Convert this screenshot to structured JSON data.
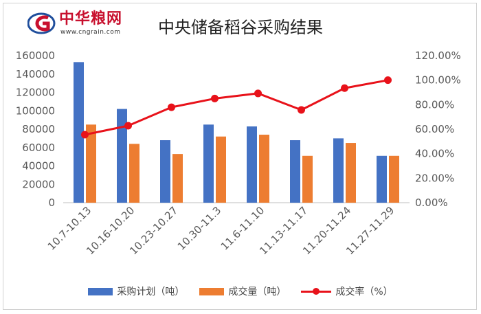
{
  "header": {
    "title": "中央储备稻谷采购结果",
    "logo_text": "中华粮网",
    "logo_url": "www.cngrain.com"
  },
  "colors": {
    "plan": "#4472c4",
    "deal": "#ed7d31",
    "rate": "#e8121a",
    "logo_red": "#c8102e",
    "logo_blue": "#1f4e9c"
  },
  "chart_data": {
    "type": "bar",
    "title": "中央储备稻谷采购结果",
    "categories": [
      "10.7-10.13",
      "10.16-10.20",
      "10.23-10.27",
      "10.30-11.3",
      "11.6-11.10",
      "11.13-11.17",
      "11.20-11.24",
      "11.27-11.29"
    ],
    "series": [
      {
        "name": "采购计划（吨）",
        "type": "bar",
        "axis": "left",
        "values": [
          153000,
          102000,
          68000,
          85000,
          83000,
          68000,
          70000,
          51000
        ]
      },
      {
        "name": "成交量（吨）",
        "type": "bar",
        "axis": "left",
        "values": [
          85000,
          64000,
          53000,
          72000,
          74000,
          51000,
          65000,
          51000
        ]
      },
      {
        "name": "成交率（%）",
        "type": "line",
        "axis": "right",
        "values": [
          55.5,
          62.8,
          77.9,
          85.0,
          89.2,
          75.7,
          93.5,
          100.0
        ]
      }
    ],
    "y_left": {
      "ylim": [
        0,
        160000
      ],
      "ticks": [
        "0",
        "20000",
        "40000",
        "60000",
        "80000",
        "100000",
        "120000",
        "140000",
        "160000"
      ]
    },
    "y_right": {
      "ylim": [
        0,
        120
      ],
      "ticks": [
        "0.00%",
        "20.00%",
        "40.00%",
        "60.00%",
        "80.00%",
        "100.00%",
        "120.00%"
      ]
    },
    "grid": false,
    "legend_position": "bottom"
  }
}
